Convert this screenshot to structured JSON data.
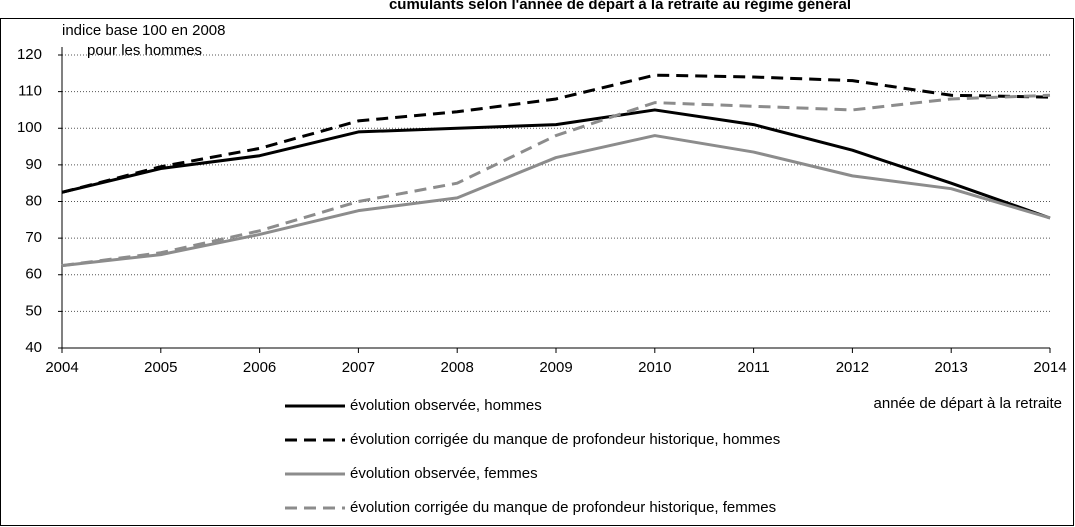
{
  "chart_data": {
    "type": "line",
    "title": "cumulants selon l'année de départ à la retraite au régime général",
    "y_label": [
      "indice base 100 en 2008",
      "pour les hommes"
    ],
    "x_label": "année de départ à la retraite",
    "x": [
      2004,
      2005,
      2006,
      2007,
      2008,
      2009,
      2010,
      2011,
      2012,
      2013,
      2014
    ],
    "xlim": [
      2004,
      2014
    ],
    "xticks": [
      2004,
      2005,
      2006,
      2007,
      2008,
      2009,
      2010,
      2011,
      2012,
      2013,
      2014
    ],
    "ylim": [
      40,
      120
    ],
    "yticks": [
      40,
      50,
      60,
      70,
      80,
      90,
      100,
      110,
      120
    ],
    "grid": true,
    "series": [
      {
        "name": "évolution observée, hommes",
        "color": "#000000",
        "dashed": false,
        "values": [
          82.5,
          89,
          92.5,
          99,
          100,
          101,
          105,
          101,
          94,
          85,
          75.5
        ]
      },
      {
        "name": "évolution corrigée du manque de profondeur historique, hommes",
        "color": "#000000",
        "dashed": true,
        "values": [
          82.5,
          89.5,
          94.5,
          102,
          104.5,
          108,
          114.5,
          114,
          113,
          109,
          108.5
        ]
      },
      {
        "name": "évolution observée, femmes",
        "color": "#8c8c8c",
        "dashed": false,
        "values": [
          62.5,
          65.5,
          71,
          77.5,
          81,
          92,
          98,
          93.5,
          87,
          83.5,
          75.5
        ]
      },
      {
        "name": "évolution corrigée du manque de profondeur historique, femmes",
        "color": "#8c8c8c",
        "dashed": true,
        "values": [
          62.5,
          66,
          72,
          80,
          85,
          98,
          107,
          106,
          105,
          108,
          109
        ]
      }
    ]
  }
}
